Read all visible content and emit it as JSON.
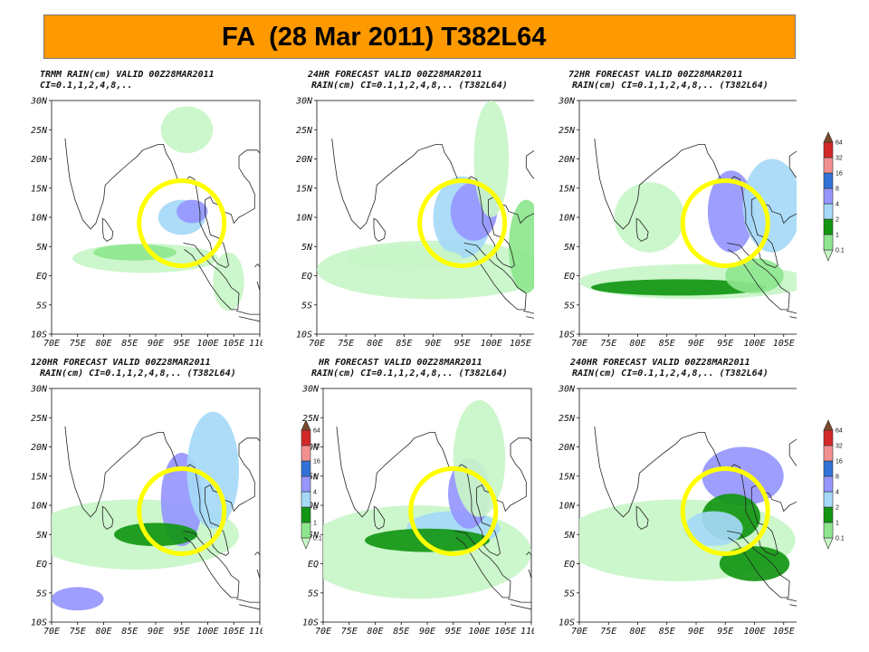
{
  "title": "FA  (28 Mar 2011) T382L64",
  "lat_ticks": [
    "30N",
    "25N",
    "20N",
    "15N",
    "10N",
    "5N",
    "EQ",
    "5S",
    "10S"
  ],
  "lon_ticks": [
    "70E",
    "75E",
    "80E",
    "85E",
    "90E",
    "95E",
    "100E",
    "105E",
    "110E"
  ],
  "colorbar": {
    "levels": [
      "0.1",
      "1",
      "2",
      "4",
      "8",
      "16",
      "32",
      "64"
    ],
    "colors": [
      "#c8f5c8",
      "#8ee68e",
      "#129612",
      "#a5d9f7",
      "#9696ff",
      "#3271d8",
      "#f29090",
      "#d22828",
      "#7a4a2a"
    ]
  },
  "panels": [
    {
      "line1": "TRMM RAIN(cm) VALID 00Z28MAR2011",
      "line2": "CI=0.1,1,2,4,8,.."
    },
    {
      "line1": "24HR FORECAST VALID 00Z28MAR2011",
      "line2": "RAIN(cm) CI=0.1,1,2,4,8,.. (T382L64)"
    },
    {
      "line1": "72HR FORECAST VALID 00Z28MAR2011",
      "line2": "RAIN(cm) CI=0.1,1,2,4,8,.. (T382L64)"
    },
    {
      "line1": "120HR FORECAST VALID 00Z28MAR2011",
      "line2": "RAIN(cm) CI=0.1,1,2,4,8,.. (T382L64)"
    },
    {
      "line1": "HR FORECAST VALID 00Z28MAR2011",
      "line2": "RAIN(cm) CI=0.1,1,2,4,8,.. (T382L64)"
    },
    {
      "line1": "240HR FORECAST VALID 00Z28MAR2011",
      "line2": "RAIN(cm) CI=0.1,1,2,4,8,.. (T382L64)"
    }
  ],
  "chart_data": {
    "type": "heatmap",
    "xlim": [
      "70E",
      "110E"
    ],
    "ylim": [
      "10S",
      "30N"
    ],
    "colorbar_levels": [
      0.1,
      1,
      2,
      4,
      8,
      16,
      32,
      64
    ],
    "highlight_circle_center": {
      "lon": 95,
      "lat": 9
    }
  }
}
